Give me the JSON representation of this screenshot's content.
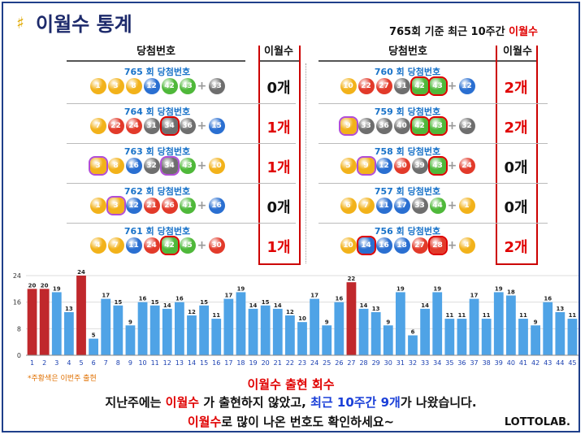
{
  "header": {
    "title": "이월수 통계",
    "subtitle_part1": "765회 기준 최근 10주간",
    "subtitle_part2": "이월수"
  },
  "table": {
    "col_draw": "당첨번호",
    "col_count": "이월수",
    "draws": [
      {
        "label": "765 회 당첨번호",
        "numbers": [
          1,
          3,
          8,
          12,
          42,
          43
        ],
        "bonus": 33,
        "highlight": [],
        "count": "0개",
        "count_color": "#111111"
      },
      {
        "label": "764 회 당첨번호",
        "numbers": [
          7,
          22,
          24,
          31,
          34,
          36
        ],
        "bonus": 15,
        "highlight": [
          34
        ],
        "count": "1개",
        "count_color": "#e00000"
      },
      {
        "label": "763 회 당첨번호",
        "numbers": [
          3,
          8,
          16,
          32,
          34,
          43
        ],
        "bonus": 10,
        "highlight": [
          3,
          34
        ],
        "count": "1개",
        "count_color": "#e00000"
      },
      {
        "label": "762 회 당첨번호",
        "numbers": [
          1,
          3,
          12,
          21,
          26,
          41
        ],
        "bonus": 16,
        "highlight": [
          3
        ],
        "count": "0개",
        "count_color": "#111111"
      },
      {
        "label": "761 회 당첨번호",
        "numbers": [
          4,
          7,
          11,
          24,
          42,
          45
        ],
        "bonus": 30,
        "highlight": [
          42
        ],
        "count": "1개",
        "count_color": "#e00000"
      },
      {
        "label": "760 회 당첨번호",
        "numbers": [
          10,
          22,
          27,
          31,
          42,
          43
        ],
        "bonus": 12,
        "highlight": [
          42,
          43
        ],
        "count": "2개",
        "count_color": "#e00000"
      },
      {
        "label": "759 회 당첨번호",
        "numbers": [
          9,
          33,
          36,
          40,
          42,
          43
        ],
        "bonus": 32,
        "highlight": [
          9,
          42,
          43
        ],
        "count": "2개",
        "count_color": "#e00000"
      },
      {
        "label": "758 회 당첨번호",
        "numbers": [
          5,
          9,
          12,
          30,
          39,
          43
        ],
        "bonus": 24,
        "highlight": [
          9,
          43
        ],
        "count": "0개",
        "count_color": "#111111"
      },
      {
        "label": "757 회 당첨번호",
        "numbers": [
          6,
          7,
          11,
          17,
          33,
          44
        ],
        "bonus": 1,
        "highlight": [],
        "count": "0개",
        "count_color": "#111111"
      },
      {
        "label": "756 회 당첨번호",
        "numbers": [
          10,
          14,
          16,
          18,
          27,
          28
        ],
        "bonus": 4,
        "highlight": [
          14,
          28
        ],
        "count": "2개",
        "count_color": "#e00000"
      }
    ]
  },
  "chart_data": {
    "type": "bar",
    "categories": [
      "1",
      "2",
      "3",
      "4",
      "5",
      "6",
      "7",
      "8",
      "9",
      "10",
      "11",
      "12",
      "13",
      "14",
      "15",
      "16",
      "17",
      "18",
      "19",
      "20",
      "21",
      "22",
      "23",
      "24",
      "25",
      "26",
      "27",
      "28",
      "29",
      "30",
      "31",
      "32",
      "33",
      "34",
      "35",
      "36",
      "37",
      "38",
      "39",
      "40",
      "41",
      "42",
      "43",
      "44",
      "45"
    ],
    "values": [
      20,
      20,
      19,
      13,
      24,
      5,
      17,
      15,
      9,
      16,
      15,
      14,
      16,
      12,
      15,
      11,
      17,
      19,
      14,
      15,
      14,
      12,
      10,
      17,
      9,
      16,
      22,
      14,
      13,
      9,
      19,
      6,
      14,
      19,
      11,
      11,
      17,
      11,
      19,
      18,
      11,
      9,
      16,
      13,
      11
    ],
    "highlighted": [
      "1",
      "2",
      "5",
      "27"
    ],
    "ylim": [
      0,
      24
    ],
    "yticks": [
      0,
      8,
      16,
      24
    ],
    "colors": {
      "normal": "#4fa3e6",
      "highlight": "#c0282c"
    }
  },
  "ball_colors": {
    "yellow": "#f2b21a",
    "blue": "#2a6fd1",
    "red": "#e23a2a",
    "gray": "#6e6e6e",
    "green": "#4fb83a",
    "plus": "#999999"
  },
  "footer": {
    "note": "*주황색은 이번주 출현",
    "caption_title": "이월수 출현 회수",
    "caption_line2_a": "지난주에는 ",
    "caption_line2_b": "이월수",
    "caption_line2_c": " 가 출현하지 않았고, ",
    "caption_line2_d": "최근 10주간 9개",
    "caption_line2_e": "가 나왔습니다.",
    "caption_line3_a": "이월수",
    "caption_line3_b": "로 많이 나온 번호도 확인하세요~",
    "brand": "LOTTOLAB."
  }
}
